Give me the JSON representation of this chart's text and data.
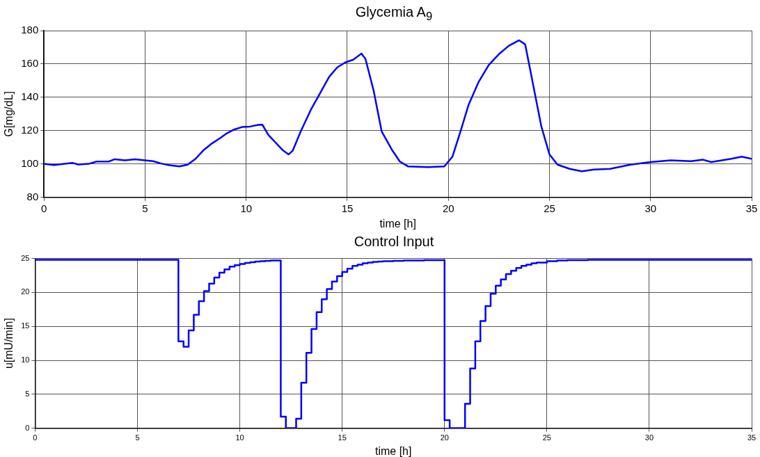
{
  "chart_data": [
    {
      "type": "line",
      "title": "Glycemia A$_{9}$",
      "xlabel": "time [h]",
      "ylabel": "G[mg/dL]",
      "x": [
        0,
        0.5,
        1.0,
        1.4,
        1.7,
        2.2,
        2.6,
        3.2,
        3.5,
        4.0,
        4.5,
        5.0,
        5.4,
        5.8,
        6.2,
        6.7,
        7.1,
        7.5,
        7.9,
        8.3,
        8.7,
        9.0,
        9.4,
        9.8,
        10.2,
        10.6,
        10.8,
        11.1,
        11.5,
        11.8,
        12.1,
        12.3,
        12.7,
        13.2,
        13.6,
        14.1,
        14.5,
        14.9,
        15.3,
        15.7,
        15.9,
        16.3,
        16.7,
        17.2,
        17.6,
        18.0,
        19.0,
        19.8,
        20.2,
        20.6,
        21.0,
        21.5,
        22.0,
        22.5,
        23.0,
        23.5,
        23.8,
        24.2,
        24.6,
        25.0,
        25.4,
        26.0,
        26.6,
        27.2,
        28.0,
        29.0,
        30.0,
        31.0,
        32.0,
        32.6,
        33.0,
        34.0,
        34.5,
        35.0
      ],
      "series": [
        {
          "color": "#0000ff",
          "values": [
            100.1,
            99.4,
            100.1,
            100.7,
            99.7,
            100.1,
            101.5,
            101.5,
            102.9,
            102.2,
            102.9,
            102.2,
            101.7,
            100.3,
            99.3,
            98.6,
            99.6,
            103.2,
            108.4,
            112.3,
            115.5,
            118.1,
            120.7,
            122.2,
            122.5,
            123.5,
            123.6,
            117.4,
            112.3,
            108.4,
            105.8,
            108.0,
            119.6,
            132.6,
            141.3,
            152.2,
            157.9,
            160.9,
            162.6,
            166.2,
            163.0,
            144.2,
            119.6,
            108.7,
            101.5,
            98.6,
            98.2,
            98.6,
            104.4,
            119.6,
            135.5,
            149.3,
            159.4,
            165.9,
            171.0,
            174.2,
            171.7,
            147.1,
            122.5,
            105.8,
            99.6,
            97.1,
            95.7,
            96.7,
            97.1,
            99.6,
            101.2,
            102.2,
            101.7,
            102.6,
            101.2,
            103.2,
            104.4,
            103.2
          ]
        }
      ],
      "xlim": [
        0,
        35
      ],
      "xticks": [
        0,
        5,
        10,
        15,
        20,
        25,
        30,
        35
      ],
      "ylim": [
        80,
        180
      ],
      "yticks": [
        80,
        100,
        120,
        140,
        160,
        180
      ],
      "grid": true,
      "marker": "none",
      "line_style": "solid"
    },
    {
      "type": "step",
      "title": "Control Input",
      "xlabel": "time [h]",
      "ylabel": "u[mU/min]",
      "x": [
        0,
        7.0,
        7.25,
        7.5,
        7.75,
        8.0,
        8.25,
        8.5,
        8.75,
        9.0,
        9.25,
        9.5,
        9.75,
        10.0,
        10.25,
        10.5,
        10.75,
        11.0,
        11.25,
        11.5,
        12.0,
        12.25,
        12.75,
        13.0,
        13.25,
        13.5,
        13.75,
        14.0,
        14.25,
        14.5,
        14.75,
        15.0,
        15.25,
        15.5,
        15.75,
        16.0,
        16.25,
        16.5,
        16.75,
        17.0,
        17.5,
        18.0,
        19.0,
        20.0,
        20.25,
        21.0,
        21.25,
        21.5,
        21.75,
        22.0,
        22.25,
        22.5,
        22.75,
        23.0,
        23.25,
        23.5,
        23.75,
        24.0,
        24.25,
        24.5,
        25.0,
        25.5,
        26.0,
        27.0,
        35.0
      ],
      "series": [
        {
          "color": "#0000ff",
          "values": [
            24.8,
            12.8,
            12.0,
            14.4,
            16.7,
            18.7,
            20.2,
            21.3,
            22.2,
            22.9,
            23.4,
            23.8,
            24.0,
            24.2,
            24.35,
            24.45,
            24.55,
            24.6,
            24.65,
            24.7,
            1.7,
            0,
            1.4,
            6.7,
            11.1,
            14.6,
            17.1,
            19.0,
            20.5,
            21.6,
            22.4,
            23.0,
            23.5,
            23.9,
            24.1,
            24.3,
            24.4,
            24.5,
            24.55,
            24.6,
            24.65,
            24.7,
            24.75,
            1.2,
            0,
            3.6,
            8.8,
            12.8,
            15.8,
            18.0,
            19.8,
            21.0,
            21.9,
            22.7,
            23.2,
            23.6,
            23.9,
            24.1,
            24.3,
            24.4,
            24.6,
            24.7,
            24.75,
            24.8,
            24.8
          ]
        }
      ],
      "xlim": [
        0,
        35
      ],
      "xticks": [
        0,
        5,
        10,
        15,
        20,
        25,
        30,
        35
      ],
      "ylim": [
        0,
        25
      ],
      "yticks": [
        0,
        5,
        10,
        15,
        20,
        25
      ],
      "grid": true,
      "marker": "none",
      "line_style": "solid"
    }
  ]
}
